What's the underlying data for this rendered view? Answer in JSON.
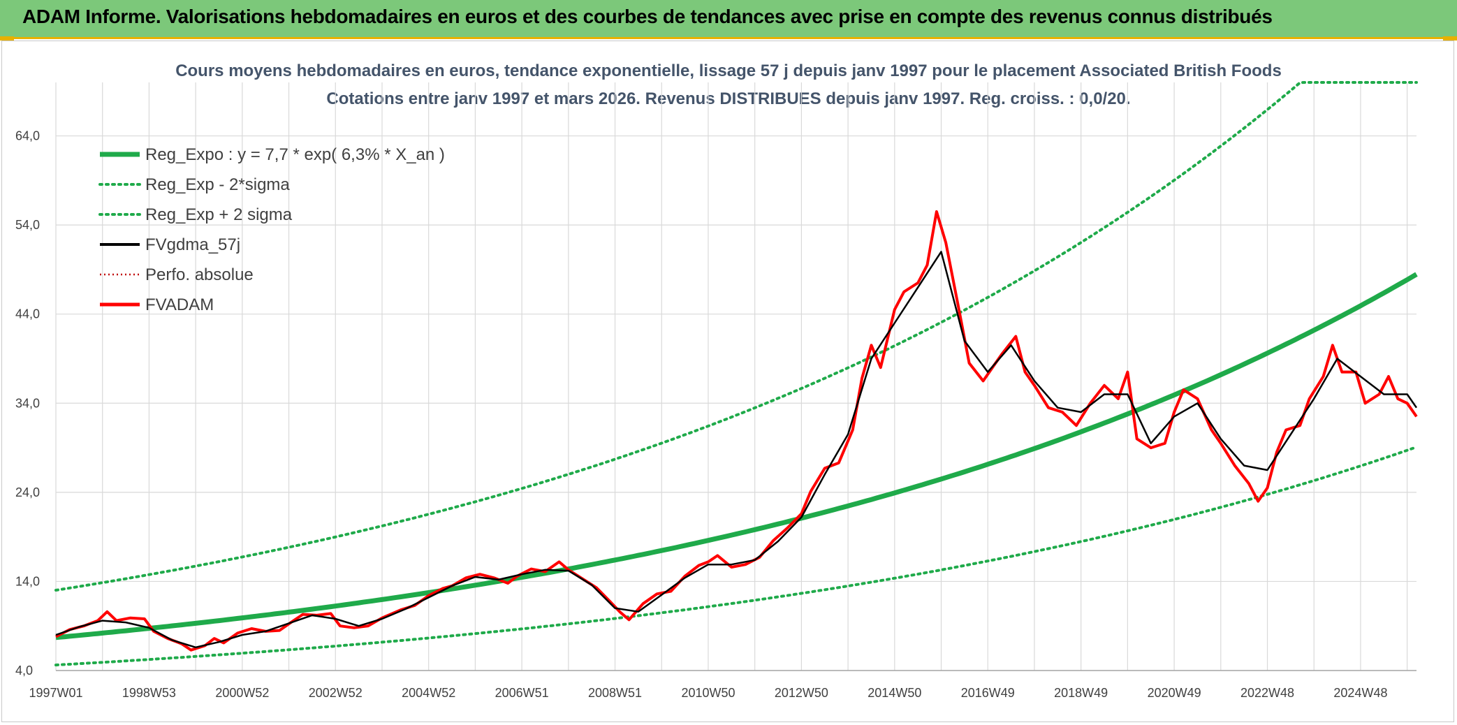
{
  "header": {
    "title": "ADAM Informe. Valorisations hebdomadaires en euros et des courbes de tendances avec prise en compte des revenus connus distribués"
  },
  "colors": {
    "banner": "#7cc87a",
    "accent": "#e8b100",
    "trend": "#1faa4a",
    "fvadam": "#ff0000",
    "smooth": "#000000",
    "grid": "#d9d9d9"
  },
  "chart_data": {
    "type": "line",
    "title_line1": "Cours moyens hebdomadaires en euros, tendance exponentielle, lissage 57 j depuis janv 1997 pour le placement Associated British Foods",
    "title_line2": "Cotations entre janv 1997 et mars 2026. Revenus DISTRIBUES depuis janv 1997. Reg. croiss. : 0,0/20.",
    "ylim": [
      4,
      70
    ],
    "yticks": [
      "4,0",
      "14,0",
      "24,0",
      "34,0",
      "44,0",
      "54,0",
      "64,0"
    ],
    "x_start_year": 1997,
    "x_end_year": 2026.2,
    "xticks": [
      {
        "label": "1997W01",
        "year": 1997.0
      },
      {
        "label": "1998W53",
        "year": 1999.0
      },
      {
        "label": "2000W52",
        "year": 2001.0
      },
      {
        "label": "2002W52",
        "year": 2003.0
      },
      {
        "label": "2004W52",
        "year": 2005.0
      },
      {
        "label": "2006W51",
        "year": 2007.0
      },
      {
        "label": "2008W51",
        "year": 2009.0
      },
      {
        "label": "2010W50",
        "year": 2011.0
      },
      {
        "label": "2012W50",
        "year": 2013.0
      },
      {
        "label": "2014W50",
        "year": 2015.0
      },
      {
        "label": "2016W49",
        "year": 2017.0
      },
      {
        "label": "2018W49",
        "year": 2019.0
      },
      {
        "label": "2020W49",
        "year": 2021.0
      },
      {
        "label": "2022W48",
        "year": 2023.0
      },
      {
        "label": "2024W48",
        "year": 2025.0
      }
    ],
    "regression": {
      "a": 7.7,
      "rate": 0.063,
      "sigma_low_factor": 0.6,
      "sigma_high_factor": 1.69,
      "cap": 70
    },
    "legend": [
      {
        "label": "Reg_Expo : y = 7,7 * exp( 6,3% *  X_an )",
        "style": "trend"
      },
      {
        "label": "Reg_Exp - 2*sigma",
        "style": "band"
      },
      {
        "label": "Reg_Exp + 2 sigma",
        "style": "band"
      },
      {
        "label": "FVgdma_57j",
        "style": "smooth"
      },
      {
        "label": "Perfo. absolue",
        "style": "perfo"
      },
      {
        "label": "FVADAM",
        "style": "fvadam"
      }
    ],
    "series": [
      {
        "name": "FVADAM",
        "points": [
          [
            1997.0,
            7.8
          ],
          [
            1997.3,
            8.6
          ],
          [
            1997.6,
            9.0
          ],
          [
            1997.9,
            9.6
          ],
          [
            1998.1,
            10.6
          ],
          [
            1998.3,
            9.6
          ],
          [
            1998.6,
            9.9
          ],
          [
            1998.9,
            9.8
          ],
          [
            1999.1,
            8.4
          ],
          [
            1999.4,
            7.6
          ],
          [
            1999.7,
            7.0
          ],
          [
            1999.9,
            6.3
          ],
          [
            2000.2,
            6.8
          ],
          [
            2000.4,
            7.6
          ],
          [
            2000.6,
            7.1
          ],
          [
            2000.9,
            8.2
          ],
          [
            2001.2,
            8.7
          ],
          [
            2001.5,
            8.4
          ],
          [
            2001.8,
            8.5
          ],
          [
            2002.1,
            9.6
          ],
          [
            2002.3,
            10.3
          ],
          [
            2002.6,
            10.2
          ],
          [
            2002.9,
            10.4
          ],
          [
            2003.1,
            9.0
          ],
          [
            2003.4,
            8.8
          ],
          [
            2003.7,
            9.0
          ],
          [
            2004.0,
            9.9
          ],
          [
            2004.4,
            10.8
          ],
          [
            2004.7,
            11.3
          ],
          [
            2005.0,
            12.4
          ],
          [
            2005.3,
            13.2
          ],
          [
            2005.5,
            13.5
          ],
          [
            2005.8,
            14.4
          ],
          [
            2006.1,
            14.8
          ],
          [
            2006.4,
            14.4
          ],
          [
            2006.7,
            13.8
          ],
          [
            2006.9,
            14.6
          ],
          [
            2007.2,
            15.4
          ],
          [
            2007.5,
            15.1
          ],
          [
            2007.8,
            16.2
          ],
          [
            2008.0,
            15.3
          ],
          [
            2008.3,
            14.3
          ],
          [
            2008.6,
            13.3
          ],
          [
            2008.9,
            11.7
          ],
          [
            2009.1,
            10.6
          ],
          [
            2009.3,
            9.7
          ],
          [
            2009.6,
            11.5
          ],
          [
            2009.9,
            12.6
          ],
          [
            2010.2,
            12.9
          ],
          [
            2010.5,
            14.6
          ],
          [
            2010.8,
            15.8
          ],
          [
            2011.0,
            16.2
          ],
          [
            2011.2,
            16.9
          ],
          [
            2011.5,
            15.6
          ],
          [
            2011.8,
            15.9
          ],
          [
            2012.1,
            16.7
          ],
          [
            2012.4,
            18.6
          ],
          [
            2012.7,
            20.0
          ],
          [
            2013.0,
            21.6
          ],
          [
            2013.2,
            24.1
          ],
          [
            2013.5,
            26.7
          ],
          [
            2013.8,
            27.3
          ],
          [
            2014.1,
            31.0
          ],
          [
            2014.3,
            36.8
          ],
          [
            2014.5,
            40.5
          ],
          [
            2014.7,
            38.0
          ],
          [
            2015.0,
            44.5
          ],
          [
            2015.2,
            46.5
          ],
          [
            2015.5,
            47.5
          ],
          [
            2015.7,
            49.5
          ],
          [
            2015.9,
            55.5
          ],
          [
            2016.1,
            52.0
          ],
          [
            2016.4,
            44.0
          ],
          [
            2016.6,
            38.5
          ],
          [
            2016.9,
            36.5
          ],
          [
            2017.1,
            38.0
          ],
          [
            2017.3,
            39.5
          ],
          [
            2017.6,
            41.5
          ],
          [
            2017.8,
            37.5
          ],
          [
            2018.0,
            36.0
          ],
          [
            2018.3,
            33.5
          ],
          [
            2018.6,
            33.0
          ],
          [
            2018.9,
            31.5
          ],
          [
            2019.2,
            34.0
          ],
          [
            2019.5,
            36.0
          ],
          [
            2019.8,
            34.5
          ],
          [
            2020.0,
            37.5
          ],
          [
            2020.2,
            30.0
          ],
          [
            2020.5,
            29.0
          ],
          [
            2020.8,
            29.5
          ],
          [
            2021.0,
            33.0
          ],
          [
            2021.2,
            35.5
          ],
          [
            2021.5,
            34.5
          ],
          [
            2021.8,
            31.0
          ],
          [
            2022.0,
            29.5
          ],
          [
            2022.3,
            27.0
          ],
          [
            2022.6,
            25.0
          ],
          [
            2022.8,
            23.0
          ],
          [
            2023.0,
            24.5
          ],
          [
            2023.2,
            28.5
          ],
          [
            2023.4,
            31.0
          ],
          [
            2023.7,
            31.5
          ],
          [
            2023.9,
            34.5
          ],
          [
            2024.2,
            37.0
          ],
          [
            2024.4,
            40.5
          ],
          [
            2024.6,
            37.5
          ],
          [
            2024.9,
            37.5
          ],
          [
            2025.1,
            34.0
          ],
          [
            2025.4,
            35.0
          ],
          [
            2025.6,
            37.0
          ],
          [
            2025.8,
            34.5
          ],
          [
            2026.0,
            34.0
          ],
          [
            2026.2,
            32.5
          ]
        ]
      },
      {
        "name": "FVgdma_57j",
        "points": [
          [
            1997.0,
            8.0
          ],
          [
            1997.5,
            8.9
          ],
          [
            1998.0,
            9.6
          ],
          [
            1998.5,
            9.4
          ],
          [
            1999.0,
            8.8
          ],
          [
            1999.5,
            7.4
          ],
          [
            2000.0,
            6.6
          ],
          [
            2000.5,
            7.2
          ],
          [
            2001.0,
            8.0
          ],
          [
            2001.5,
            8.4
          ],
          [
            2002.0,
            9.3
          ],
          [
            2002.5,
            10.2
          ],
          [
            2003.0,
            9.8
          ],
          [
            2003.5,
            9.0
          ],
          [
            2004.0,
            9.8
          ],
          [
            2004.5,
            10.9
          ],
          [
            2005.0,
            12.2
          ],
          [
            2005.5,
            13.5
          ],
          [
            2006.0,
            14.5
          ],
          [
            2006.5,
            14.2
          ],
          [
            2007.0,
            14.8
          ],
          [
            2007.5,
            15.3
          ],
          [
            2008.0,
            15.2
          ],
          [
            2008.5,
            13.6
          ],
          [
            2009.0,
            11.0
          ],
          [
            2009.5,
            10.6
          ],
          [
            2010.0,
            12.5
          ],
          [
            2010.5,
            14.4
          ],
          [
            2011.0,
            15.9
          ],
          [
            2011.5,
            15.9
          ],
          [
            2012.0,
            16.4
          ],
          [
            2012.5,
            18.5
          ],
          [
            2013.0,
            21.2
          ],
          [
            2013.5,
            26.0
          ],
          [
            2014.0,
            30.5
          ],
          [
            2014.5,
            39.0
          ],
          [
            2015.0,
            43.0
          ],
          [
            2015.5,
            47.0
          ],
          [
            2016.0,
            51.0
          ],
          [
            2016.5,
            41.0
          ],
          [
            2017.0,
            37.5
          ],
          [
            2017.5,
            40.5
          ],
          [
            2018.0,
            36.5
          ],
          [
            2018.5,
            33.5
          ],
          [
            2019.0,
            33.0
          ],
          [
            2019.5,
            35.0
          ],
          [
            2020.0,
            35.0
          ],
          [
            2020.5,
            29.5
          ],
          [
            2021.0,
            32.5
          ],
          [
            2021.5,
            34.0
          ],
          [
            2022.0,
            30.0
          ],
          [
            2022.5,
            27.0
          ],
          [
            2023.0,
            26.5
          ],
          [
            2023.5,
            30.5
          ],
          [
            2024.0,
            34.5
          ],
          [
            2024.5,
            39.0
          ],
          [
            2025.0,
            37.0
          ],
          [
            2025.5,
            35.0
          ],
          [
            2026.0,
            35.0
          ],
          [
            2026.2,
            33.5
          ]
        ]
      }
    ]
  }
}
